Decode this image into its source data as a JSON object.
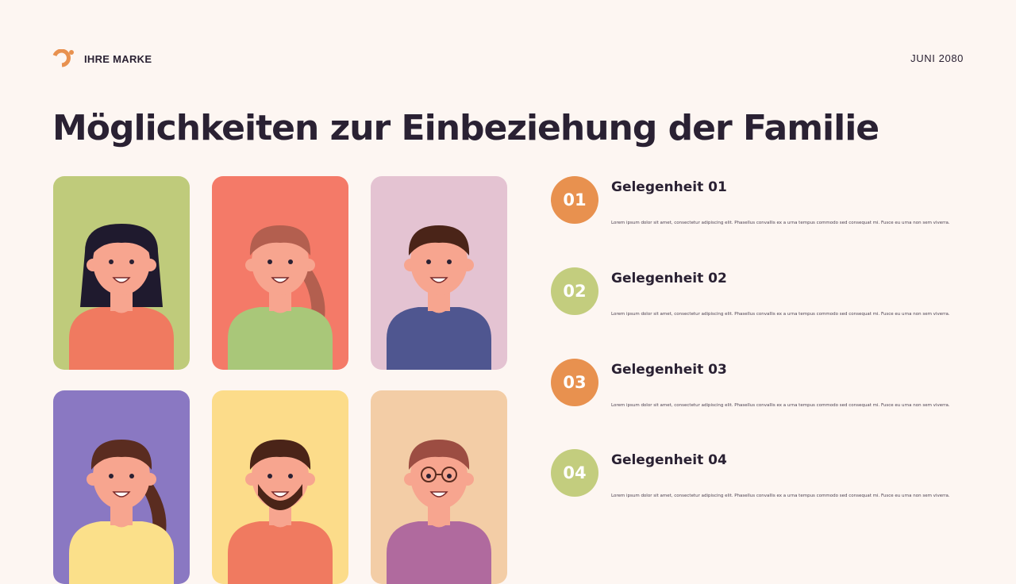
{
  "header": {
    "brand": "IHRE MARKE",
    "date": "JUNI 2080",
    "accent": "#e8914f"
  },
  "title": "Möglichkeiten zur Einbeziehung der Familie",
  "cards": [
    {
      "bg": "#bfcb7b",
      "hair": "#1f1a2e",
      "shirt": "#f07a60",
      "skin": "#f7a58f",
      "style": "long"
    },
    {
      "bg": "#f47a68",
      "hair": "#b35f4f",
      "shirt": "#a9c779",
      "skin": "#f7a58f",
      "style": "pony"
    },
    {
      "bg": "#e4c3d2",
      "hair": "#4a2418",
      "shirt": "#4f5690",
      "skin": "#f7a58f",
      "style": "short"
    },
    {
      "bg": "#8a78c2",
      "hair": "#5a2c20",
      "shirt": "#fbe08a",
      "skin": "#f7a58f",
      "style": "pony"
    },
    {
      "bg": "#fcdc8a",
      "hair": "#4a2418",
      "shirt": "#f07a60",
      "skin": "#f7a58f",
      "style": "beard"
    },
    {
      "bg": "#f3cda6",
      "hair": "#9c4d42",
      "shirt": "#b06a9e",
      "skin": "#f7a58f",
      "style": "glasses"
    }
  ],
  "items": [
    {
      "num": "01",
      "title": "Gelegenheit 01",
      "text": "Lorem ipsum dolor sit amet, consectetur adipiscing elit. Phasellus convallis ex a urna tempus commodo sed consequat mi. Fusce eu urna non sem viverra.",
      "color": "#e8914f"
    },
    {
      "num": "02",
      "title": "Gelegenheit 02",
      "text": "Lorem ipsum dolor sit amet, consectetur adipiscing elit. Phasellus convallis ex a urna tempus commodo sed consequat mi. Fusce eu urna non sem viverra.",
      "color": "#c3cd7e"
    },
    {
      "num": "03",
      "title": "Gelegenheit 03",
      "text": "Lorem ipsum dolor sit amet, consectetur adipiscing elit. Phasellus convallis ex a urna tempus commodo sed consequat mi. Fusce eu urna non sem viverra.",
      "color": "#e8914f"
    },
    {
      "num": "04",
      "title": "Gelegenheit 04",
      "text": "Lorem ipsum dolor sit amet, consectetur adipiscing elit. Phasellus convallis ex a urna tempus commodo sed consequat mi. Fusce eu urna non sem viverra.",
      "color": "#c3cd7e"
    }
  ]
}
